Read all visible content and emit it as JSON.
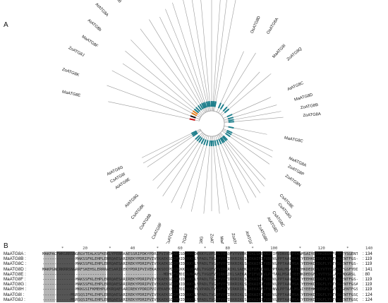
{
  "panels": {
    "a": "A",
    "b": "B"
  },
  "colors": {
    "branch": "#9a9a9a",
    "bootstrap": "#1f7f8c",
    "highlight_red": "#cc1111",
    "highlight_orange": "#e08020",
    "highlight_black": "#111111",
    "shade_black": "#000000",
    "shade_dark": "#555555",
    "shade_light": "#b5b5b5"
  },
  "tree": {
    "leaves": [
      "MaATG8E",
      "ZoATG8K",
      "ZoATG8J",
      "MaATG8F",
      "AtATG8b",
      "AtATG8A",
      "OsATG8B",
      "OsATG8C",
      "ZoATG8I",
      "ZoATG8D",
      "ZoATG8C",
      "ZoATG8E",
      "OsATG8D",
      "OsATG8A",
      "CsATG8H",
      "MaATG8I",
      "AtATG8f",
      "AtATG8I",
      "OsATG8D",
      "OsATG8A",
      "MaATG8I",
      "ZoATG8Q",
      "AtATG8C",
      "MaATG8D",
      "ZoATG8B",
      "ZoATG8A",
      "MaATG8C",
      "MaATG8A",
      "ZoATG8P",
      "ZoATG8N",
      "CsATG8E",
      "CsATG8G",
      "CsATG8C",
      "AtATG8D",
      "ZoATG8R",
      "AtATG8H",
      "ZoATG8H",
      "MaATG8H",
      "ZoATG8M",
      "ZoATG8G",
      "CsATG8J",
      "CsATG8I",
      "CsATG8F",
      "CsATG8B",
      "CsATG8K",
      "AtATG8G",
      "AtATG8E",
      "CsATG8I",
      "AtATG8G"
    ]
  },
  "alignment": {
    "ruler": "        *        20         *        40         *        60         *        80         *       100         *       120         *       140",
    "rows": [
      {
        "name": "MaATG8A",
        "seq": "MAKPACFWKGRRSNGRGVTEALKSFKEKLYPERRKAESSRIPDKYPDRIPVIVEKAEKSDIPDIDKKKYLVPSDLTVGQFVYVVRKRIKLSAEKAIFIFVDNVLPPTAAMSAIYEEHKDEDGFLYMTYSGENTFGSAV",
        "count": "134"
      },
      {
        "name": "MaATG8B",
        "seq": "--------------MAKSSFKLEHPLERRQAESARIREKYPDRIPVIVEKAEKSDIPDIDKKKYLVPADLTVGQFVYVIRKRIKLSAEKAIFIFVDNVLPPTAALMSAIYEEHKDEDGFLYVTYSGENTFGS---",
        "count": "119"
      },
      {
        "name": "MaATG8C",
        "seq": "--------------MAKSSFKLEHPLERRQAESARIREKYPDRIPVIVEKAEKSDIPDIDKKKYLVPADLTVGQFVYVIRKRIKLSAEKAIFIFVDNVLPPTAALMSAIYEEHKDEDGFLYVTYSGENTFGS---",
        "count": "119"
      },
      {
        "name": "MaATG8D",
        "seq": "MAKPGNCRKRRSNGRRFSKEHSLERRRAESARIREKYPDRIPVIVEKAEKSDIPDIDKKKYLVPADLTVGQFVYVIRKRIKLSAEKAIFIFVDNVLPPTAALMSAIYEEHKDEDGFLYVTYSGENTFGSFYDDRPFD",
        "count": "141"
      },
      {
        "name": "MaATG8E",
        "seq": "---------------------------------------------------MDHGFSMDIDLMAAFLTVGQFVYIRKRIKLSAEKAIFIFVDNVLPPTAALMSAIYEEHKDEDGFLYVTYSGLAFFMQGRSL",
        "count": "80"
      },
      {
        "name": "MaATG8F",
        "seq": "--------------MAKSSFKLEHPLERRQAESARIREKYPDRIPVIVEKAEKSDIPDIDKKKYLVPADLTVGQFVYVIRKRIKLSAEKAIFIFVDNVLPPTAALMSAIYEEHKDEDGFLYVTYSGENTFGS---",
        "count": "119"
      },
      {
        "name": "MaATG8G",
        "seq": "--------------MAKSSFKLEHPLERRQAESARIREKYPDRIPVIVEKAEKSDIPDIDKKKYLVPADLTVGQFVYVIRKRIKLSAEKAIFIFVDNVLPPTAALMSAIYEEHKDEDGFLYVTYSGENTFGSA--",
        "count": "119"
      },
      {
        "name": "MaATG8H",
        "seq": "--------------MKKGSIFKMEHPLEKRQAESARIREKYPDRIPVIVEKAEKSDIPDIDKKKYLVPADLTVGQFVYVIRKRIKLSAEKAIFIFVDNVLPPTAALMSAIYEEHKDEDGFLYVTYSGENTFGS---",
        "count": "119"
      },
      {
        "name": "MaATG8I",
        "seq": "------------MSRSQSIFKLEHPLERRQAESARIREKYPDRIPVIVEKAEKSDIPDIDKKKYLVPADLTVGQFVYVIRKRIKLSAEKAIFIFVDNVLPPTAALMSAIYEEHKDEDGFLYVTYSGENTFGSQNQ-",
        "count": "124"
      },
      {
        "name": "MaATG8J",
        "seq": "------------MSRSQSIFKLEHPLERRQAESARIREKYPDRIPVIVEKAEKSDIPDIDKKKYLVPADLTVGQFVYVIRKRIKLSAEKAIFIFVDNVLPPTAALMSAIYEEHKDEDGFLYVTYSGENTFGSQNQ-",
        "count": "124"
      }
    ]
  }
}
